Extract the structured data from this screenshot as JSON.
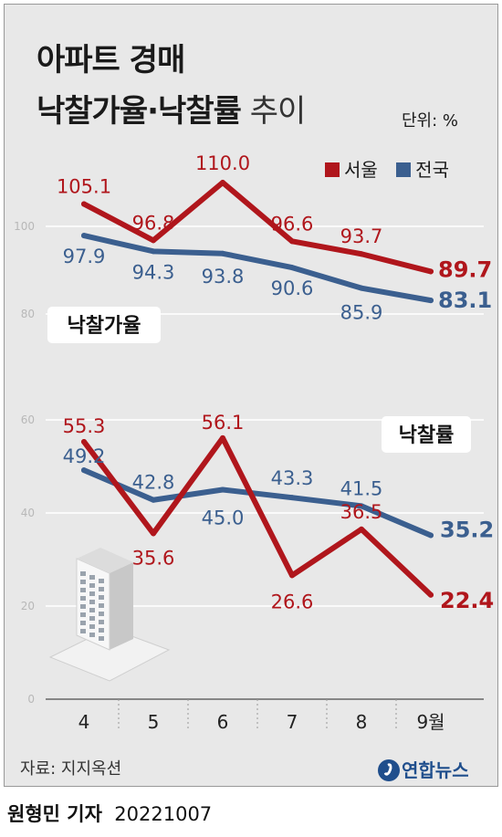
{
  "header": {
    "title_line1": "아파트 경매",
    "title_line2_bold": "낙찰가율·낙찰률",
    "title_line2_light": " 추이",
    "unit": "단위: %"
  },
  "legend": {
    "seoul": "서울",
    "national": "전국"
  },
  "colors": {
    "seoul": "#b0161c",
    "national": "#3b5f8f",
    "background": "#e8e8e8",
    "grid": "#ffffff",
    "axis_text": "#b8b8b8"
  },
  "chart_data": [
    {
      "type": "line",
      "label": "낙찰가율",
      "x": [
        "4",
        "5",
        "6",
        "7",
        "8",
        "9월"
      ],
      "series": [
        {
          "name": "서울",
          "values": [
            105.1,
            96.8,
            110.0,
            96.6,
            93.7,
            89.7
          ],
          "labels": [
            "105.1",
            "96.8",
            "110.0",
            "96.6",
            "93.7",
            "89.7"
          ]
        },
        {
          "name": "전국",
          "values": [
            97.9,
            94.3,
            93.8,
            90.6,
            85.9,
            83.1
          ],
          "labels": [
            "97.9",
            "94.3",
            "93.8",
            "90.6",
            "85.9",
            "83.1"
          ]
        }
      ],
      "yticks": [
        80,
        100
      ]
    },
    {
      "type": "line",
      "label": "낙찰률",
      "x": [
        "4",
        "5",
        "6",
        "7",
        "8",
        "9월"
      ],
      "series": [
        {
          "name": "서울",
          "values": [
            55.3,
            35.6,
            56.1,
            26.6,
            36.5,
            22.4
          ],
          "labels": [
            "55.3",
            "35.6",
            "56.1",
            "26.6",
            "36.5",
            "22.4"
          ]
        },
        {
          "name": "전국",
          "values": [
            49.2,
            42.8,
            45.0,
            43.3,
            41.5,
            35.2
          ],
          "labels": [
            "49.2",
            "42.8",
            "45.0",
            "43.3",
            "41.5",
            "35.2"
          ]
        }
      ],
      "yticks": [
        0,
        20,
        40,
        60
      ]
    }
  ],
  "footer": {
    "source": "자료: 지지옥션",
    "brand": "연합뉴스",
    "reporter_name": "원형민 기자",
    "date": "20221007"
  }
}
